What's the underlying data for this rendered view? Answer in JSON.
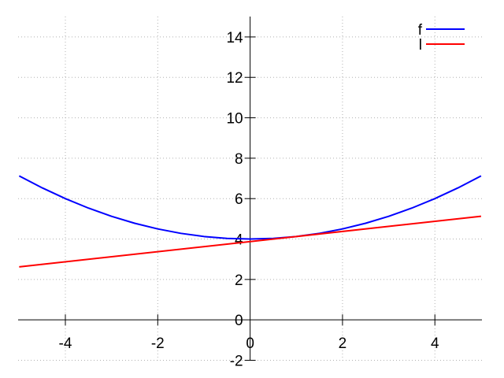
{
  "chart_data": {
    "type": "line",
    "title": "",
    "xlabel": "",
    "ylabel": "",
    "x_range": [
      -5.023,
      5.019
    ],
    "y_range": [
      -2.0,
      15.01
    ],
    "xticks": [
      -4,
      -2,
      0,
      2,
      4
    ],
    "xtick_labels": [
      "-4",
      "-2",
      "0",
      "2",
      "4"
    ],
    "yticks": [
      -2,
      0,
      2,
      4,
      6,
      8,
      10,
      12,
      14
    ],
    "ytick_labels": [
      "-2",
      "0",
      "2",
      "4",
      "6",
      "8",
      "10",
      "12",
      "14"
    ],
    "grid": "dotted",
    "axes_style": "centered-zero-axes",
    "legend_position": "top-right",
    "series": [
      {
        "name": "f",
        "color": "#0000ff",
        "x": [
          -5,
          -4.5,
          -4,
          -3.5,
          -3,
          -2.5,
          -2,
          -1.5,
          -1,
          -0.5,
          0,
          0.5,
          1,
          1.5,
          2,
          2.5,
          3,
          3.5,
          4,
          4.5,
          5
        ],
        "y": [
          7.125,
          6.53125,
          6.0,
          5.53125,
          5.125,
          4.78125,
          4.5,
          4.28125,
          4.125,
          4.03125,
          4.0,
          4.03125,
          4.125,
          4.28125,
          4.5,
          4.78125,
          5.125,
          5.53125,
          6.0,
          6.53125,
          7.125
        ]
      },
      {
        "name": "l",
        "color": "#ff0000",
        "x": [
          -5,
          5
        ],
        "y": [
          2.625,
          5.125
        ]
      }
    ],
    "legend": [
      {
        "label": "f",
        "color": "#0000ff"
      },
      {
        "label": "l",
        "color": "#ff0000"
      }
    ],
    "colors": {
      "axis": "#000000",
      "grid": "#b0b0b0",
      "text": "#000000",
      "background": "#ffffff"
    }
  }
}
